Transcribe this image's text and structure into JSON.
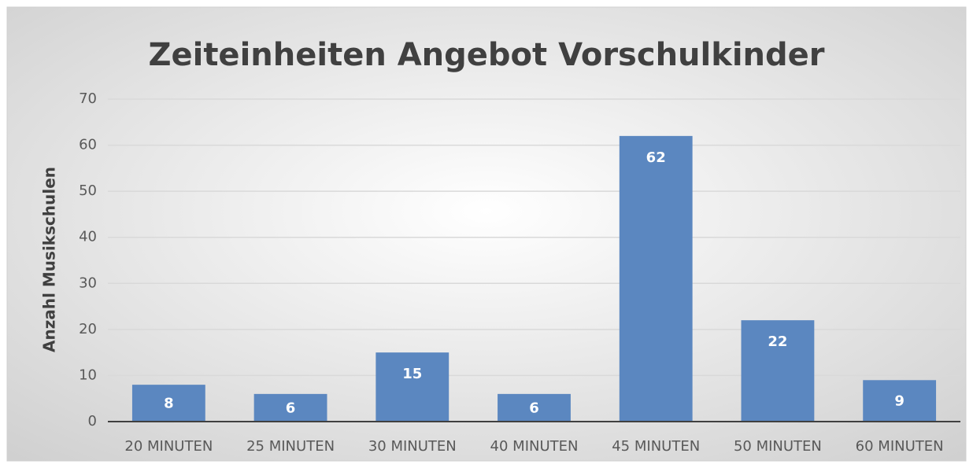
{
  "chart_data": {
    "type": "bar",
    "title": "Zeiteinheiten Angebot Vorschulkinder",
    "y_label": "Anzahl Musikschulen",
    "categories": [
      "20 MINUTEN",
      "25 MINUTEN",
      "30 MINUTEN",
      "40 MINUTEN",
      "45 MINUTEN",
      "50 MINUTEN",
      "60 MINUTEN"
    ],
    "values": [
      8,
      6,
      15,
      6,
      62,
      22,
      9
    ],
    "color": "#5b87c0",
    "ylim": [
      0,
      70
    ],
    "yticks": [
      0,
      10,
      20,
      30,
      40,
      50,
      60,
      70
    ],
    "grid": true
  }
}
